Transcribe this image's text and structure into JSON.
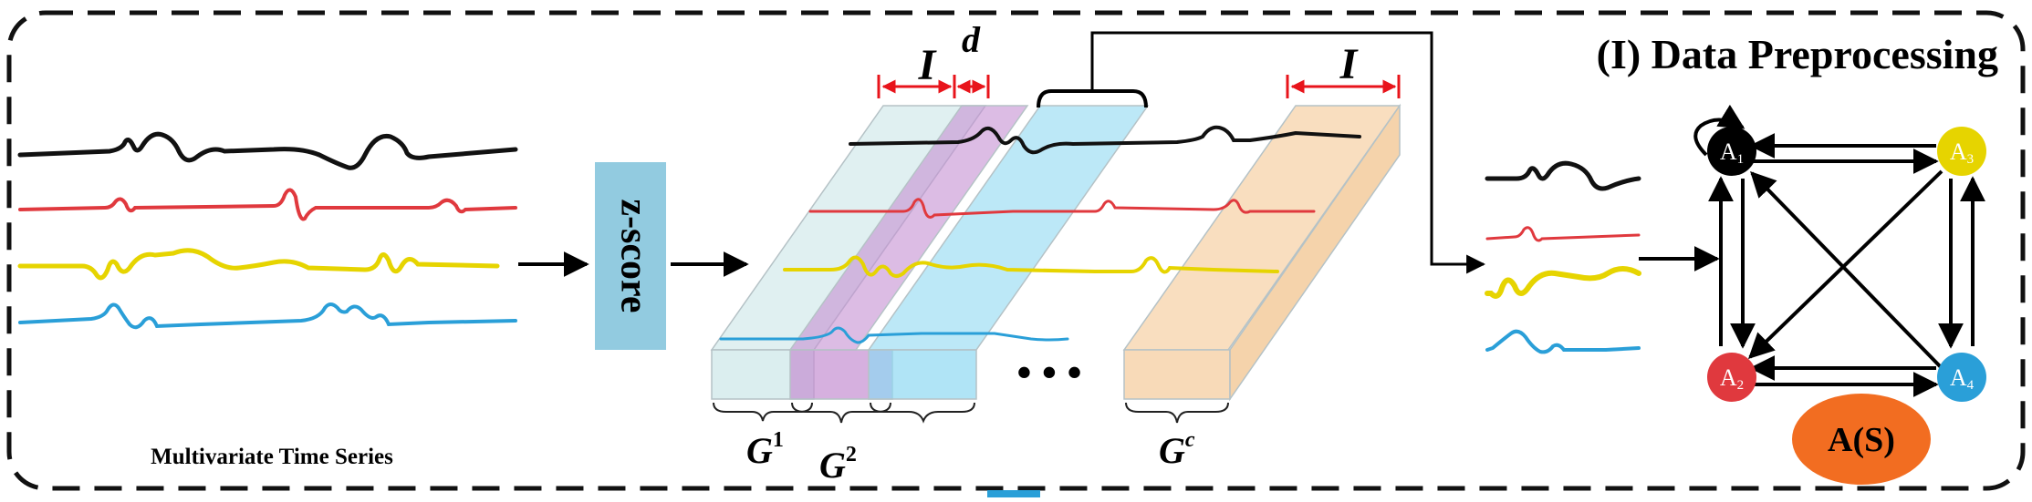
{
  "panel": {
    "title": "(I) Data Preprocessing",
    "border_color": "#111111"
  },
  "input": {
    "caption": "Multivariate Time Series"
  },
  "zscore": {
    "label": "z-score",
    "fill": "#92cbe0"
  },
  "windows": {
    "width_symbol": "I",
    "stride_symbol": "d",
    "ellipsis": "• • •",
    "group_first": {
      "base": "G",
      "sup": "1"
    },
    "group_second": {
      "base": "G",
      "sup": "2"
    },
    "group_last": {
      "base": "G",
      "sup": "c"
    },
    "fills": {
      "first": "#d5ebec",
      "second": "#c28ccf",
      "third": "#8fd9f2",
      "last": "#f8d8b4"
    }
  },
  "series_colors": {
    "series_1": "#111111",
    "series_2": "#e0393e",
    "series_3": "#e6d400",
    "series_4": "#2a9fd8"
  },
  "graph": {
    "nodes": [
      {
        "id": "a1",
        "base": "A",
        "sub": "1",
        "color": "#000000"
      },
      {
        "id": "a3",
        "base": "A",
        "sub": "3",
        "color": "#e6d400"
      },
      {
        "id": "a2",
        "base": "A",
        "sub": "2",
        "color": "#e0393e"
      },
      {
        "id": "a4",
        "base": "A",
        "sub": "4",
        "color": "#2a9fd8"
      }
    ],
    "output_label": "A(S)",
    "output_color": "#f26d21"
  }
}
